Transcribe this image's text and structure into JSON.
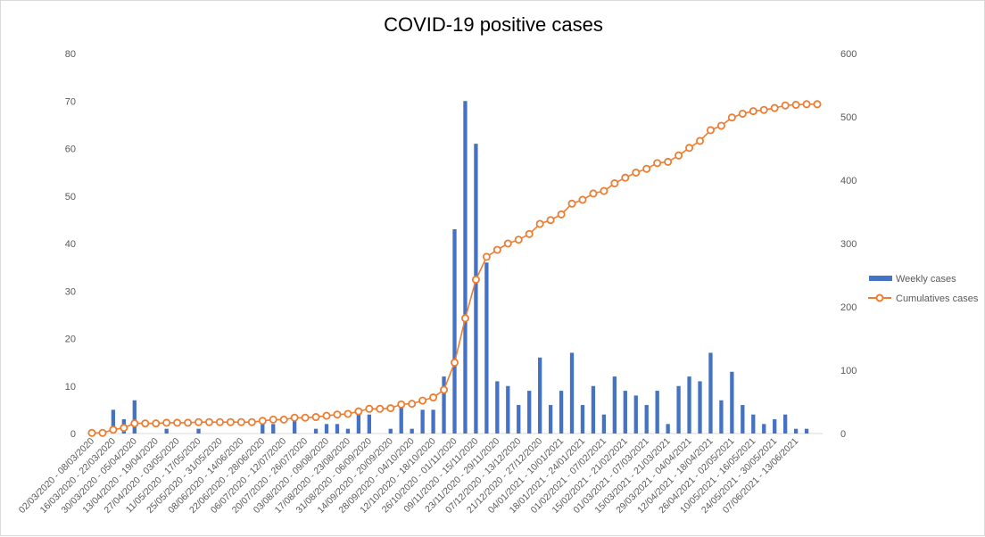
{
  "chart_data": {
    "type": "bar+line",
    "title": "COVID-19 positive cases",
    "colors": {
      "bars": "#4472c4",
      "line": "#ed7d31",
      "grid": "#d9d9d9",
      "text": "#595959"
    },
    "y_left": {
      "min": 0,
      "max": 80,
      "ticks": [
        0,
        10,
        20,
        30,
        40,
        50,
        60,
        70,
        80
      ]
    },
    "y_right": {
      "min": 0,
      "max": 600,
      "ticks": [
        0,
        100,
        200,
        300,
        400,
        500,
        600
      ]
    },
    "grid": false,
    "legend": {
      "position": "right"
    },
    "x_labels": [
      "02/03/2020 - 08/03/2020",
      "16/03/2020 - 22/03/2020",
      "30/03/2020 - 05/04/2020",
      "13/04/2020 - 19/04/2020",
      "27/04/2020 - 03/05/2020",
      "11/05/2020 - 17/05/2020",
      "25/05/2020 - 31/05/2020",
      "08/06/2020 - 14/06/2020",
      "22/06/2020 - 28/06/2020",
      "06/07/2020 - 12/07/2020",
      "20/07/2020 - 26/07/2020",
      "03/08/2020 - 09/08/2020",
      "17/08/2020 - 23/08/2020",
      "31/08/2020 - 06/09/2020",
      "14/09/2020 - 20/09/2020",
      "28/09/2020 - 04/10/2020",
      "12/10/2020 - 18/10/2020",
      "26/10/2020 - 01/11/2020",
      "09/11/2020 - 15/11/2020",
      "23/11/2020 - 29/11/2020",
      "07/12/2020 - 13/12/2020",
      "21/12/2020 - 27/12/2020",
      "04/01/2021 - 10/01/2021",
      "18/01/2021 - 24/01/2021",
      "01/02/2021 - 07/02/2021",
      "15/02/2021 - 21/02/2021",
      "01/03/2021 - 07/03/2021",
      "15/03/2021 - 21/03/2021",
      "29/03/2021 - 04/04/2021",
      "12/04/2021 - 18/04/2021",
      "26/04/2021 - 02/05/2021",
      "10/05/2021 - 16/05/2021",
      "24/05/2021 - 30/05/2021",
      "07/06/2021 - 13/06/2021"
    ],
    "series": [
      {
        "name": "Weekly cases",
        "type": "bar",
        "axis": "left",
        "values": [
          0,
          0,
          5,
          3,
          7,
          0,
          0,
          1,
          0,
          0,
          1,
          0,
          0,
          0,
          0,
          0,
          2,
          2,
          0,
          3,
          0,
          1,
          2,
          2,
          1,
          4,
          4,
          0,
          1,
          6,
          1,
          5,
          5,
          12,
          43,
          70,
          61,
          36,
          11,
          10,
          6,
          9,
          16,
          6,
          9,
          17,
          6,
          10,
          4,
          12,
          9,
          8,
          6,
          9,
          2,
          10,
          12,
          11,
          17,
          7,
          13,
          6,
          4,
          2,
          3,
          4,
          1,
          1,
          0
        ]
      },
      {
        "name": "Cumulatives cases",
        "type": "line",
        "axis": "right",
        "values": [
          1,
          1,
          6,
          9,
          16,
          16,
          16,
          17,
          17,
          17,
          18,
          18,
          18,
          18,
          18,
          18,
          20,
          22,
          22,
          25,
          25,
          26,
          28,
          30,
          31,
          35,
          39,
          39,
          40,
          46,
          47,
          52,
          57,
          69,
          112,
          182,
          243,
          279,
          290,
          300,
          306,
          315,
          331,
          337,
          346,
          363,
          369,
          379,
          383,
          395,
          404,
          412,
          418,
          427,
          429,
          439,
          451,
          462,
          479,
          486,
          499,
          505,
          509,
          511,
          514,
          518,
          519,
          520,
          520
        ]
      }
    ]
  }
}
